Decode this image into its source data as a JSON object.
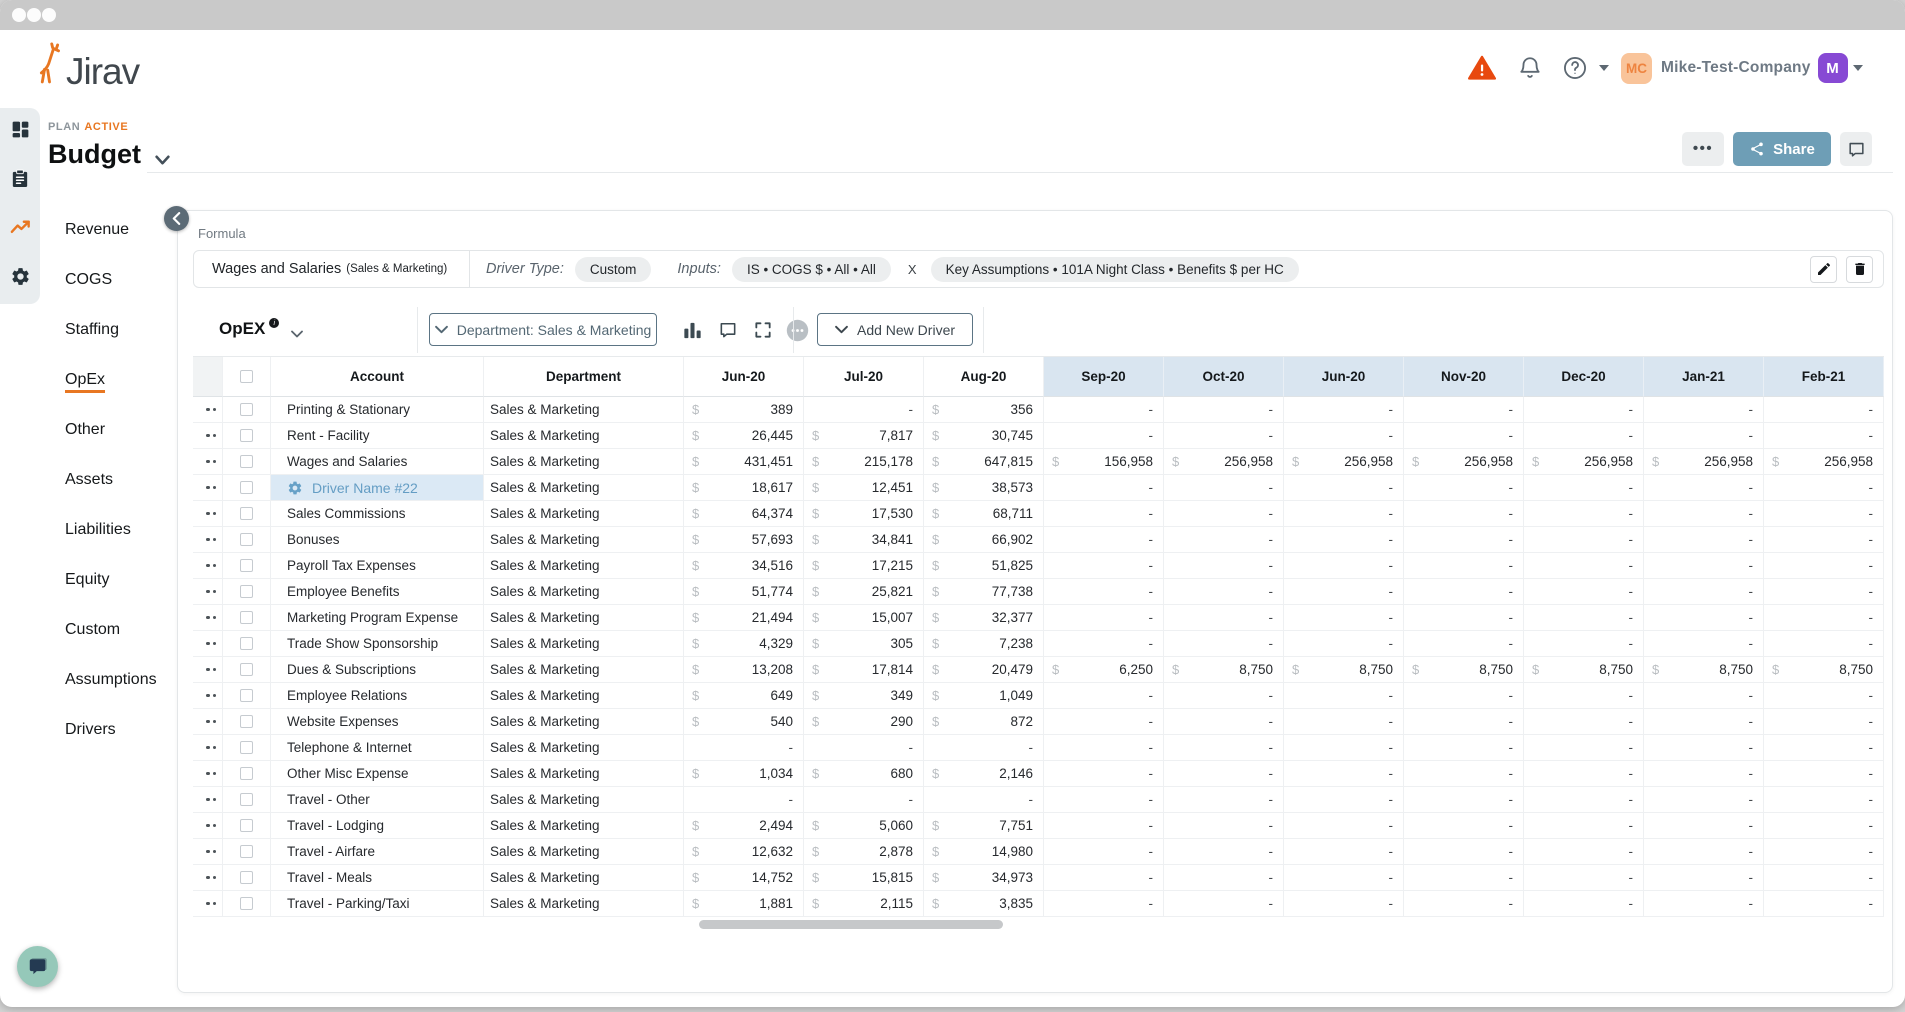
{
  "header": {
    "logo_text": "Jirav",
    "company_badge": "MC",
    "company_name": "Mike-Test-Company",
    "avatar_letter": "M"
  },
  "plan": {
    "eyebrow": "PLAN",
    "status": "ACTIVE",
    "title": "Budget"
  },
  "page_actions": {
    "share_label": "Share"
  },
  "sidebar": {
    "active": "OpEx",
    "items": [
      "Revenue",
      "COGS",
      "Staffing",
      "OpEx",
      "Other",
      "Assets",
      "Liabilities",
      "Equity",
      "Custom",
      "Assumptions",
      "Drivers"
    ]
  },
  "formula": {
    "section_label": "Formula",
    "name": "Wages and Salaries",
    "name_suffix": "(Sales & Marketing)",
    "driver_type_label": "Driver Type:",
    "driver_type_value": "Custom",
    "inputs_label": "Inputs:",
    "input_1": "IS • COGS $ • All • All",
    "operator": "X",
    "input_2": "Key Assumptions • 101A Night Class • Benefits $ per HC"
  },
  "toolbar": {
    "category_label": "OpEX",
    "department_filter_label": "Department: Sales & Marketing",
    "add_driver_label": "Add New Driver"
  },
  "icons": {
    "more_dots": "•••"
  },
  "colors": {
    "brand_orange": "#e87722",
    "warning_triangle": "#e8490f",
    "share_button": "#6e9eb6",
    "forecast_header_bg": "#d9e5f0",
    "driver_row_bg": "#dbe9f5",
    "driver_text": "#649dc4",
    "avatar_purple": "#8749d4",
    "badge_peach": "#f9c49a"
  },
  "table": {
    "header": {
      "account": "Account",
      "department": "Department"
    },
    "months": [
      {
        "label": "Jun-20",
        "forecast": false
      },
      {
        "label": "Jul-20",
        "forecast": false
      },
      {
        "label": "Aug-20",
        "forecast": false
      },
      {
        "label": "Sep-20",
        "forecast": true
      },
      {
        "label": "Oct-20",
        "forecast": true
      },
      {
        "label": "Jun-20",
        "forecast": true
      },
      {
        "label": "Nov-20",
        "forecast": true
      },
      {
        "label": "Dec-20",
        "forecast": true
      },
      {
        "label": "Jan-21",
        "forecast": true
      },
      {
        "label": "Feb-21",
        "forecast": true
      }
    ],
    "currency_symbol": "$",
    "rows": [
      {
        "account": "Printing & Stationary",
        "department": "Sales & Marketing",
        "driver": false,
        "values": [
          "389",
          "-",
          "356",
          "-",
          "-",
          "-",
          "-",
          "-",
          "-",
          "-"
        ]
      },
      {
        "account": "Rent - Facility",
        "department": "Sales & Marketing",
        "driver": false,
        "values": [
          "26,445",
          "7,817",
          "30,745",
          "-",
          "-",
          "-",
          "-",
          "-",
          "-",
          "-"
        ]
      },
      {
        "account": "Wages and Salaries",
        "department": "Sales & Marketing",
        "driver": false,
        "values": [
          "431,451",
          "215,178",
          "647,815",
          "156,958",
          "256,958",
          "256,958",
          "256,958",
          "256,958",
          "256,958",
          "256,958"
        ]
      },
      {
        "account": "Driver Name #22",
        "department": "Sales & Marketing",
        "driver": true,
        "values": [
          "18,617",
          "12,451",
          "38,573",
          "-",
          "-",
          "-",
          "-",
          "-",
          "-",
          "-"
        ]
      },
      {
        "account": "Sales Commissions",
        "department": "Sales & Marketing",
        "driver": false,
        "values": [
          "64,374",
          "17,530",
          "68,711",
          "-",
          "-",
          "-",
          "-",
          "-",
          "-",
          "-"
        ]
      },
      {
        "account": "Bonuses",
        "department": "Sales & Marketing",
        "driver": false,
        "values": [
          "57,693",
          "34,841",
          "66,902",
          "-",
          "-",
          "-",
          "-",
          "-",
          "-",
          "-"
        ]
      },
      {
        "account": "Payroll Tax Expenses",
        "department": "Sales & Marketing",
        "driver": false,
        "values": [
          "34,516",
          "17,215",
          "51,825",
          "-",
          "-",
          "-",
          "-",
          "-",
          "-",
          "-"
        ]
      },
      {
        "account": "Employee Benefits",
        "department": "Sales & Marketing",
        "driver": false,
        "values": [
          "51,774",
          "25,821",
          "77,738",
          "-",
          "-",
          "-",
          "-",
          "-",
          "-",
          "-"
        ]
      },
      {
        "account": "Marketing Program Expense",
        "department": "Sales & Marketing",
        "driver": false,
        "values": [
          "21,494",
          "15,007",
          "32,377",
          "-",
          "-",
          "-",
          "-",
          "-",
          "-",
          "-"
        ]
      },
      {
        "account": "Trade Show Sponsorship",
        "department": "Sales & Marketing",
        "driver": false,
        "values": [
          "4,329",
          "305",
          "7,238",
          "-",
          "-",
          "-",
          "-",
          "-",
          "-",
          "-"
        ]
      },
      {
        "account": "Dues & Subscriptions",
        "department": "Sales & Marketing",
        "driver": false,
        "values": [
          "13,208",
          "17,814",
          "20,479",
          "6,250",
          "8,750",
          "8,750",
          "8,750",
          "8,750",
          "8,750",
          "8,750"
        ]
      },
      {
        "account": "Employee Relations",
        "department": "Sales & Marketing",
        "driver": false,
        "values": [
          "649",
          "349",
          "1,049",
          "-",
          "-",
          "-",
          "-",
          "-",
          "-",
          "-"
        ]
      },
      {
        "account": "Website Expenses",
        "department": "Sales & Marketing",
        "driver": false,
        "values": [
          "540",
          "290",
          "872",
          "-",
          "-",
          "-",
          "-",
          "-",
          "-",
          "-"
        ]
      },
      {
        "account": "Telephone & Internet",
        "department": "Sales & Marketing",
        "driver": false,
        "values": [
          "-",
          "-",
          "-",
          "-",
          "-",
          "-",
          "-",
          "-",
          "-",
          "-"
        ]
      },
      {
        "account": "Other Misc Expense",
        "department": "Sales & Marketing",
        "driver": false,
        "values": [
          "1,034",
          "680",
          "2,146",
          "-",
          "-",
          "-",
          "-",
          "-",
          "-",
          "-"
        ]
      },
      {
        "account": "Travel - Other",
        "department": "Sales & Marketing",
        "driver": false,
        "values": [
          "-",
          "-",
          "-",
          "-",
          "-",
          "-",
          "-",
          "-",
          "-",
          "-"
        ]
      },
      {
        "account": "Travel - Lodging",
        "department": "Sales & Marketing",
        "driver": false,
        "values": [
          "2,494",
          "5,060",
          "7,751",
          "-",
          "-",
          "-",
          "-",
          "-",
          "-",
          "-"
        ]
      },
      {
        "account": "Travel - Airfare",
        "department": "Sales & Marketing",
        "driver": false,
        "values": [
          "12,632",
          "2,878",
          "14,980",
          "-",
          "-",
          "-",
          "-",
          "-",
          "-",
          "-"
        ]
      },
      {
        "account": "Travel - Meals",
        "department": "Sales & Marketing",
        "driver": false,
        "values": [
          "14,752",
          "15,815",
          "34,973",
          "-",
          "-",
          "-",
          "-",
          "-",
          "-",
          "-"
        ]
      },
      {
        "account": "Travel - Parking/Taxi",
        "department": "Sales & Marketing",
        "driver": false,
        "values": [
          "1,881",
          "2,115",
          "3,835",
          "-",
          "-",
          "-",
          "-",
          "-",
          "-",
          "-"
        ]
      }
    ]
  }
}
